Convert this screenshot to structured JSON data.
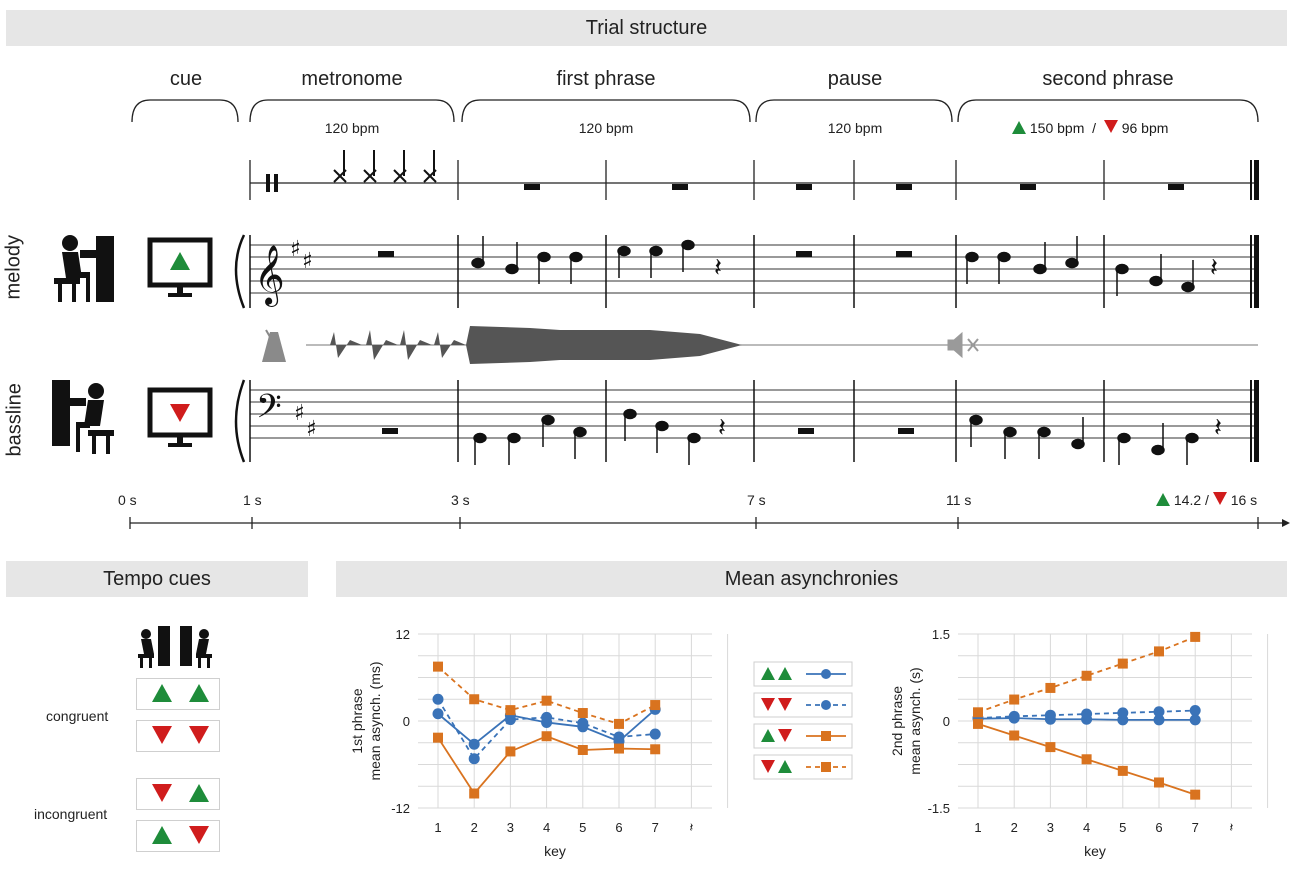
{
  "header": {
    "title": "Trial structure"
  },
  "phases": [
    {
      "label": "cue",
      "bpm": ""
    },
    {
      "label": "metronome",
      "bpm": "120 bpm"
    },
    {
      "label": "first phrase",
      "bpm": "120 bpm"
    },
    {
      "label": "pause",
      "bpm": "120 bpm"
    },
    {
      "label": "second phrase",
      "bpm_up": "150 bpm",
      "bpm_sep": "/",
      "bpm_down": "96 bpm"
    }
  ],
  "rows": {
    "melody": "melody",
    "bassline": "bassline"
  },
  "timeline": {
    "t0": "0 s",
    "t1": "1 s",
    "t3": "3 s",
    "t7": "7 s",
    "t11": "11 s",
    "tend_up": "14.2",
    "tend_sep": "/",
    "tend_down": "16 s"
  },
  "tempo_cues": {
    "title": "Tempo cues",
    "congruent": "congruent",
    "incongruent": "incongruent"
  },
  "mean_async": {
    "title": "Mean asynchronies"
  },
  "colors": {
    "up": "#1e8c3a",
    "down": "#d01c1c",
    "blue": "#3a73b8",
    "orange": "#d9731f",
    "grid": "#d9d9d9",
    "panel": "#e6e6e6"
  },
  "icons": {
    "pianist": "pianist-icon",
    "monitor": "monitor-icon",
    "metronome": "metronome-icon",
    "mute": "mute-icon"
  },
  "chart_data": [
    {
      "type": "line",
      "xlabel": "key",
      "ylabel": "1st phrase mean asynch. (ms)",
      "x": [
        "1",
        "2",
        "3",
        "4",
        "5",
        "6",
        "7"
      ],
      "xticks_extra": "𝄽",
      "yticks": [
        "12",
        "0",
        "-12"
      ],
      "ylim": [
        -12,
        12
      ],
      "series": [
        {
          "legend": "up-up",
          "color": "#3a73b8",
          "style": "solid",
          "marker": "circle",
          "values": [
            1,
            -3.2,
            0.8,
            -0.2,
            -0.8,
            -2.8,
            1.6
          ]
        },
        {
          "legend": "down-down",
          "color": "#3a73b8",
          "style": "dashed",
          "marker": "circle",
          "values": [
            3,
            -5.2,
            0.2,
            0.5,
            -0.3,
            -2.2,
            -1.8
          ]
        },
        {
          "legend": "up-down",
          "color": "#d9731f",
          "style": "solid",
          "marker": "square",
          "values": [
            -2.3,
            -10,
            -4.2,
            -2.1,
            -4,
            -3.8,
            -3.9
          ]
        },
        {
          "legend": "down-up",
          "color": "#d9731f",
          "style": "dashed",
          "marker": "square",
          "values": [
            7.5,
            3,
            1.5,
            2.8,
            1.1,
            -0.4,
            2.2
          ]
        }
      ]
    },
    {
      "type": "line",
      "xlabel": "key",
      "ylabel": "2nd phrase mean asynch. (s)",
      "x": [
        "1",
        "2",
        "3",
        "4",
        "5",
        "6",
        "7"
      ],
      "xticks_extra": "𝄽",
      "yticks": [
        "1.5",
        "0",
        "-1.5"
      ],
      "ylim": [
        -1.5,
        1.5
      ],
      "series": [
        {
          "legend": "up-up",
          "color": "#3a73b8",
          "style": "solid",
          "marker": "circle",
          "values": [
            0.04,
            0.05,
            0.03,
            0.03,
            0.02,
            0.02,
            0.02
          ]
        },
        {
          "legend": "down-down",
          "color": "#3a73b8",
          "style": "dashed",
          "marker": "circle",
          "values": [
            0.05,
            0.08,
            0.1,
            0.12,
            0.14,
            0.16,
            0.18
          ]
        },
        {
          "legend": "up-down",
          "color": "#d9731f",
          "style": "solid",
          "marker": "square",
          "values": [
            -0.05,
            -0.25,
            -0.45,
            -0.66,
            -0.86,
            -1.06,
            -1.27
          ]
        },
        {
          "legend": "down-up",
          "color": "#d9731f",
          "style": "dashed",
          "marker": "square",
          "values": [
            0.15,
            0.37,
            0.57,
            0.78,
            0.99,
            1.2,
            1.45
          ]
        }
      ]
    }
  ]
}
